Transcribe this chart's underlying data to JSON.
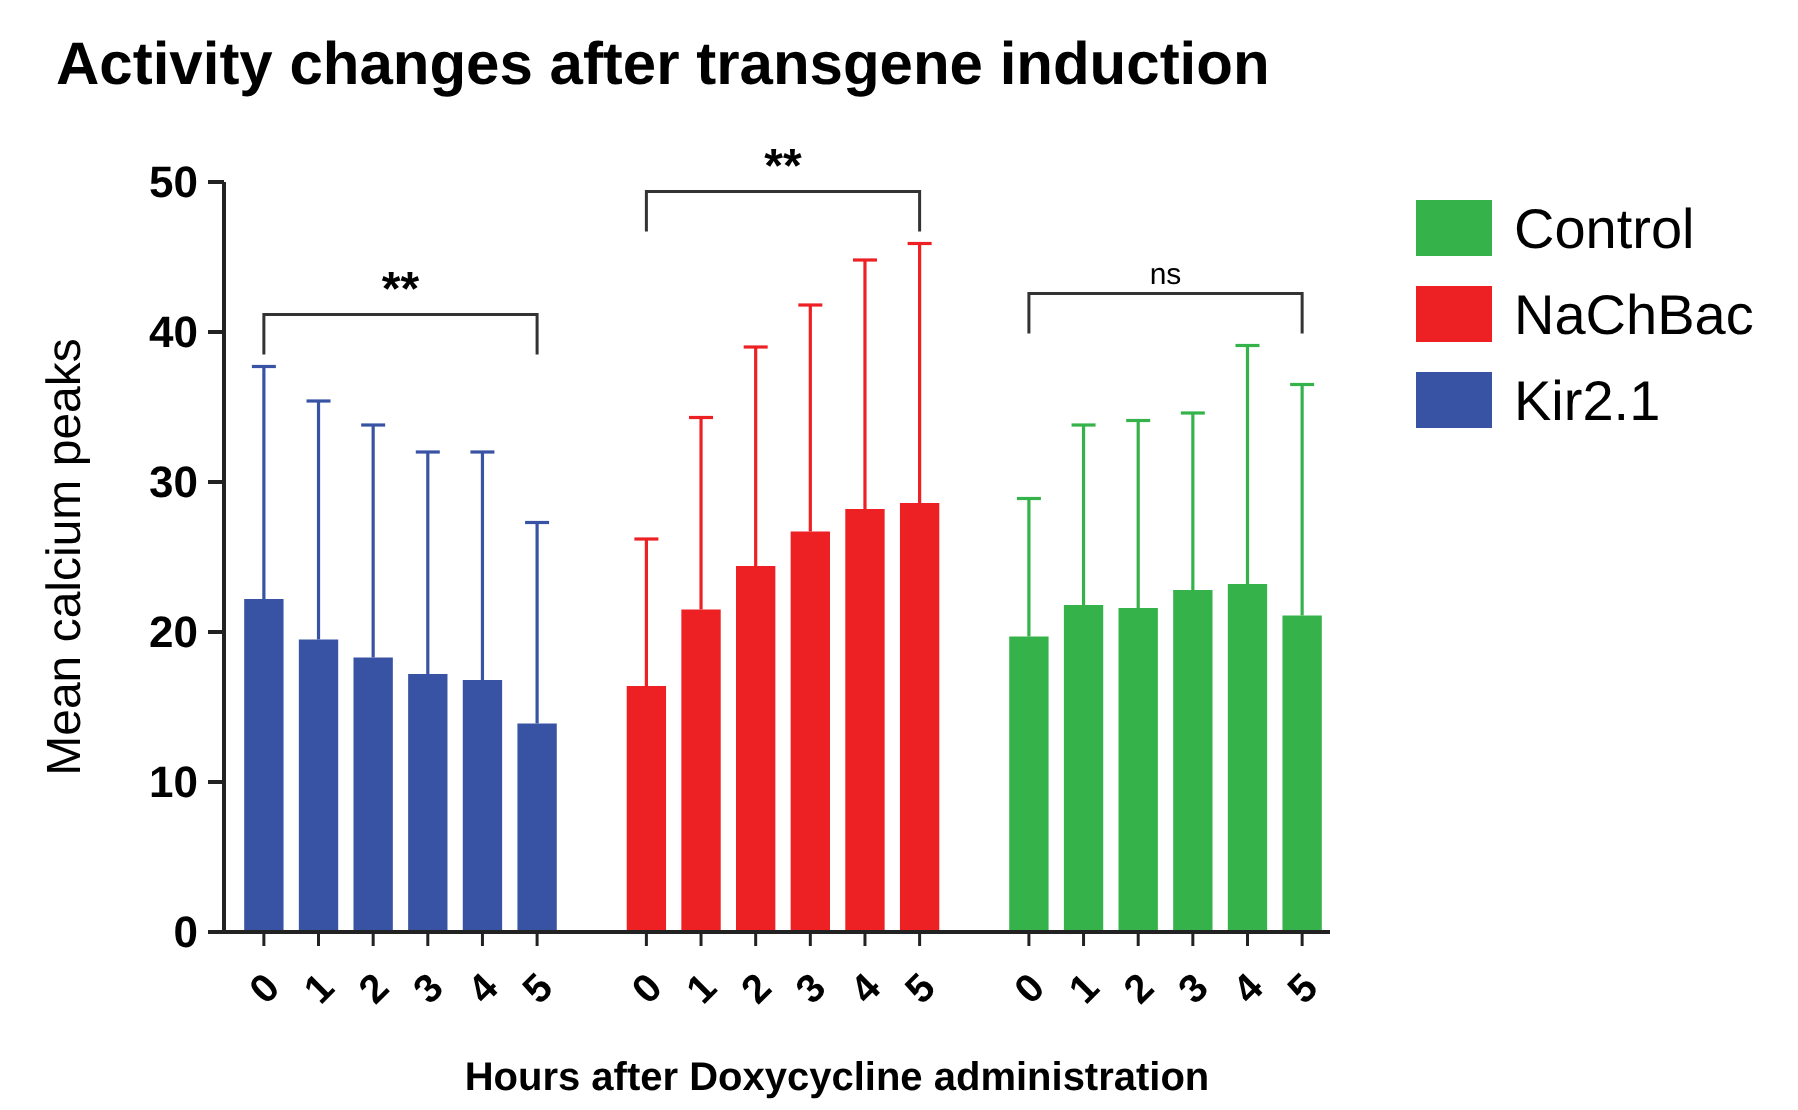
{
  "chart_data": {
    "type": "bar",
    "title": "Activity changes after transgene induction",
    "xlabel": "Hours after Doxycycline administration",
    "ylabel": "Mean calcium peaks",
    "categories": [
      "0",
      "1",
      "2",
      "3",
      "4",
      "5",
      null,
      "0",
      "1",
      "2",
      "3",
      "4",
      "5",
      null,
      "0",
      "1",
      "2",
      "3",
      "4",
      "5"
    ],
    "series": [
      {
        "name": "Control",
        "color": "#35b34a",
        "values": [
          null,
          null,
          null,
          null,
          null,
          null,
          null,
          null,
          null,
          null,
          null,
          null,
          null,
          null,
          19.7,
          21.8,
          21.6,
          22.8,
          23.2,
          21.1
        ],
        "errors": [
          null,
          null,
          null,
          null,
          null,
          null,
          null,
          null,
          null,
          null,
          null,
          null,
          null,
          null,
          [
            19.7,
            28.9
          ],
          [
            21.8,
            33.8
          ],
          [
            21.6,
            34.1
          ],
          [
            22.8,
            34.6
          ],
          [
            23.2,
            39.1
          ],
          [
            21.1,
            36.5
          ]
        ]
      },
      {
        "name": "NaChBac",
        "color": "#ed2024",
        "values": [
          null,
          null,
          null,
          null,
          null,
          null,
          null,
          16.4,
          21.5,
          24.4,
          26.7,
          28.2,
          28.6,
          null,
          null,
          null,
          null,
          null,
          null,
          null
        ],
        "errors": [
          null,
          null,
          null,
          null,
          null,
          null,
          null,
          [
            16.4,
            26.2
          ],
          [
            21.5,
            34.3
          ],
          [
            24.4,
            39.0
          ],
          [
            26.7,
            41.8
          ],
          [
            28.2,
            44.8
          ],
          [
            28.6,
            45.9
          ],
          null,
          null,
          null,
          null,
          null,
          null,
          null
        ]
      },
      {
        "name": "Kir2.1",
        "color": "#3953a4",
        "values": [
          22.2,
          19.5,
          18.3,
          17.2,
          16.8,
          13.9,
          null,
          null,
          null,
          null,
          null,
          null,
          null,
          null,
          null,
          null,
          null,
          null,
          null,
          null
        ],
        "errors": [
          [
            22.2,
            37.7
          ],
          [
            19.5,
            35.4
          ],
          [
            18.3,
            33.8
          ],
          [
            17.2,
            32.0
          ],
          [
            16.8,
            32.0
          ],
          [
            13.9,
            27.3
          ],
          null,
          null,
          null,
          null,
          null,
          null,
          null,
          null,
          null,
          null,
          null,
          null,
          null,
          null
        ]
      }
    ],
    "annotations": [
      "**",
      "**",
      "ns"
    ],
    "ylim": [
      0,
      50
    ],
    "yticks": [
      0,
      10,
      20,
      30,
      40,
      50
    ],
    "grid": false,
    "legend": "top right"
  }
}
